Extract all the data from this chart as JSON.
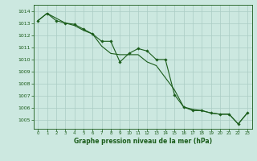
{
  "title": "Graphe pression niveau de la mer (hPa)",
  "background_color": "#cce8e0",
  "grid_color": "#aaccc4",
  "line_color": "#1a5c1a",
  "xlim": [
    -0.5,
    23.5
  ],
  "ylim": [
    1004.3,
    1014.5
  ],
  "yticks": [
    1005,
    1006,
    1007,
    1008,
    1009,
    1010,
    1011,
    1012,
    1013,
    1014
  ],
  "xticks": [
    0,
    1,
    2,
    3,
    4,
    5,
    6,
    7,
    8,
    9,
    10,
    11,
    12,
    13,
    14,
    15,
    16,
    17,
    18,
    19,
    20,
    21,
    22,
    23
  ],
  "series1_x": [
    0,
    1,
    2,
    3,
    4,
    5,
    6,
    7,
    8,
    9,
    10,
    11,
    12,
    13,
    14,
    15,
    16,
    17,
    18,
    19,
    20,
    21,
    22,
    23
  ],
  "series1_y": [
    1013.2,
    1013.8,
    1013.2,
    1013.0,
    1012.9,
    1012.5,
    1012.1,
    1011.5,
    1011.5,
    1009.8,
    1010.5,
    1010.9,
    1010.7,
    1010.0,
    1010.0,
    1007.1,
    1006.1,
    1005.8,
    1005.8,
    1005.6,
    1005.5,
    1005.5,
    1004.7,
    1005.6
  ],
  "series2_x": [
    0,
    1,
    2,
    3,
    4,
    5,
    6,
    7,
    8,
    9,
    10,
    11,
    12,
    13,
    14,
    15,
    16,
    17,
    18,
    19,
    20,
    21,
    22,
    23
  ],
  "series2_y": [
    1013.2,
    1013.8,
    1013.4,
    1013.0,
    1012.8,
    1012.4,
    1012.1,
    1011.1,
    1010.5,
    1010.4,
    1010.4,
    1010.4,
    1009.8,
    1009.5,
    1008.5,
    1007.5,
    1006.1,
    1005.9,
    1005.8,
    1005.6,
    1005.5,
    1005.5,
    1004.7,
    1005.6
  ]
}
